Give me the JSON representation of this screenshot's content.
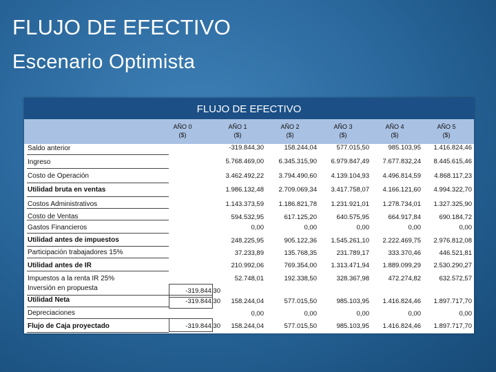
{
  "title": "FLUJO DE EFECTIVO",
  "subtitle": "Escenario Optimista",
  "table": {
    "header": "FLUJO DE EFECTIVO",
    "columns": [
      {
        "year": "AÑO 0",
        "unit": "($)"
      },
      {
        "year": "AÑO 1",
        "unit": "($)"
      },
      {
        "year": "AÑO 2",
        "unit": "($)"
      },
      {
        "year": "AÑO 3",
        "unit": "($)"
      },
      {
        "year": "AÑO 4",
        "unit": "($)"
      },
      {
        "year": "AÑO 5",
        "unit": "($)"
      }
    ],
    "rows": [
      {
        "label": "Saldo anterior",
        "bold": false,
        "values": [
          "",
          "-319.844,30",
          "158.244,04",
          "577.015,50",
          "985.103,95",
          "1.416.824,46"
        ]
      },
      {
        "label": "Ingreso",
        "bold": false,
        "values": [
          "",
          "5.768.469,00",
          "6.345.315,90",
          "6.979.847,49",
          "7.677.832,24",
          "8.445.615,46"
        ]
      },
      {
        "label": "Costo de Operación",
        "bold": false,
        "values": [
          "",
          "3.462.492,22",
          "3.794.490,60",
          "4.139.104,93",
          "4.496.814,59",
          "4.868.117,23"
        ]
      },
      {
        "label": "Utilidad bruta en ventas",
        "bold": true,
        "values": [
          "",
          "1.986.132,48",
          "2.709.069,34",
          "3.417.758,07",
          "4.166.121,60",
          "4.994.322,70"
        ]
      },
      {
        "label": "Costos Administrativos",
        "bold": false,
        "values": [
          "",
          "1.143.373,59",
          "1.186.821,78",
          "1.231.921,01",
          "1.278.734,01",
          "1.327.325,90"
        ]
      },
      {
        "label": "Costo de Ventas",
        "bold": false,
        "values": [
          "",
          "594.532,95",
          "617.125,20",
          "640.575,95",
          "664.917,84",
          "690.184,72"
        ]
      },
      {
        "label": "Gastos Financieros",
        "bold": false,
        "values": [
          "",
          "0,00",
          "0,00",
          "0,00",
          "0,00",
          "0,00"
        ]
      },
      {
        "label": "Utilidad antes de impuestos",
        "bold": true,
        "values": [
          "",
          "248.225,95",
          "905.122,36",
          "1.545.261,10",
          "2.222.469,75",
          "2.976.812,08"
        ]
      },
      {
        "label": "Participación trabajadores 15%",
        "bold": false,
        "values": [
          "",
          "37.233,89",
          "135.768,35",
          "231.789,17",
          "333.370,46",
          "446.521,81"
        ]
      },
      {
        "label": "Utilidad antes de IR",
        "bold": true,
        "values": [
          "",
          "210.992,06",
          "769.354,00",
          "1.313.471,94",
          "1.889.099,29",
          "2.530.290,27"
        ]
      },
      {
        "label": "Impuestos a la renta IR 25%",
        "bold": false,
        "values": [
          "",
          "52.748,01",
          "192.338,50",
          "328.367,98",
          "472.274,82",
          "632.572,57"
        ]
      },
      {
        "label": "Inversión en propuesta",
        "bold": false,
        "values": [
          "-319.844,30",
          "",
          "",
          "",
          "",
          ""
        ]
      },
      {
        "label": "Utilidad Neta",
        "bold": true,
        "values": [
          "-319.844,30",
          "158.244,04",
          "577.015,50",
          "985.103,95",
          "1.416.824,46",
          "1.897.717,70"
        ]
      },
      {
        "label": "Depreciaciones",
        "bold": false,
        "values": [
          "",
          "0,00",
          "0,00",
          "0,00",
          "0,00",
          "0,00"
        ]
      },
      {
        "label": "Flujo de Caja proyectado",
        "bold": true,
        "values": [
          "-319.844,30",
          "158.244,04",
          "577.015,50",
          "985.103,95",
          "1.416.824,46",
          "1.897.717,70"
        ]
      }
    ]
  }
}
